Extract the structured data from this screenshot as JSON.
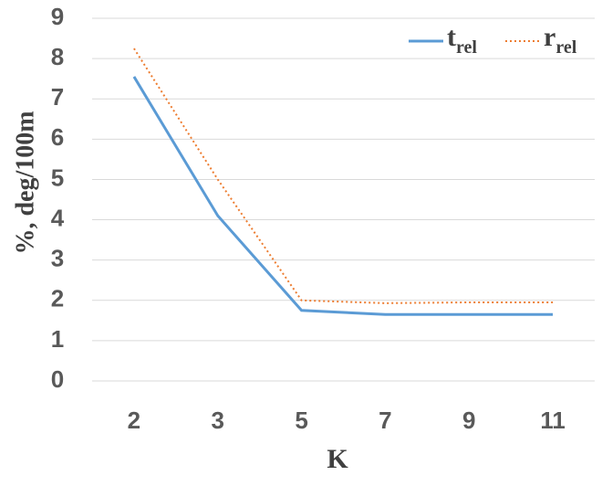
{
  "chart_data": {
    "type": "line",
    "x_label": "K",
    "y_label": "%, deg/100m",
    "categories": [
      "2",
      "3",
      "5",
      "7",
      "9",
      "11"
    ],
    "series": [
      {
        "name": "trel",
        "color": "#5b9bd5",
        "style": "solid",
        "values": [
          7.55,
          4.1,
          1.75,
          1.65,
          1.65,
          1.65
        ]
      },
      {
        "name": "rrel",
        "color": "#ed7d31",
        "style": "dotted",
        "values": [
          8.25,
          5.0,
          2.0,
          1.93,
          1.95,
          1.95
        ]
      }
    ],
    "ylim": [
      0,
      9
    ],
    "yticks": [
      0,
      1,
      2,
      3,
      4,
      5,
      6,
      7,
      8,
      9
    ],
    "grid": true,
    "legend": "top-right"
  }
}
